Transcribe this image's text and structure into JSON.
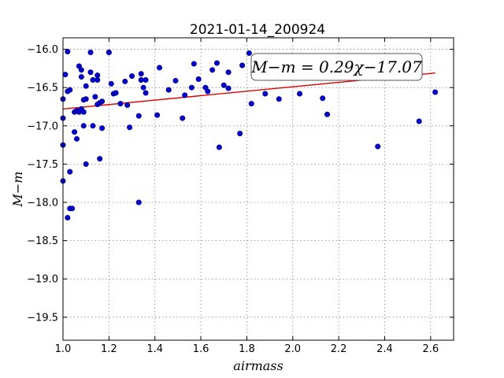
{
  "chart_data": {
    "type": "scatter",
    "title": "2021-01-14_200924",
    "xlabel": "airmass",
    "ylabel": "M−m",
    "xlim": [
      1.0,
      2.7
    ],
    "ylim": [
      -19.8,
      -15.85
    ],
    "y_inverted": true,
    "xticks": [
      "1.0",
      "1.2",
      "1.4",
      "1.6",
      "1.8",
      "2.0",
      "2.2",
      "2.4",
      "2.6"
    ],
    "yticks": [
      "−16.0",
      "−16.5",
      "−17.0",
      "−17.5",
      "−18.0",
      "−18.5",
      "−19.0",
      "−19.5"
    ],
    "grid": true,
    "annotation": "M−m = 0.29χ−17.07",
    "fit": {
      "slope": 0.29,
      "intercept": -17.07
    },
    "colors": {
      "points": "#0000cc",
      "fit_line": "#dd0000"
    },
    "points": [
      [
        1.0,
        -16.65
      ],
      [
        1.0,
        -16.9
      ],
      [
        1.0,
        -17.25
      ],
      [
        1.0,
        -17.72
      ],
      [
        1.01,
        -16.33
      ],
      [
        1.02,
        -16.03
      ],
      [
        1.02,
        -16.55
      ],
      [
        1.03,
        -16.53
      ],
      [
        1.02,
        -18.2
      ],
      [
        1.03,
        -17.6
      ],
      [
        1.03,
        -18.08
      ],
      [
        1.04,
        -18.08
      ],
      [
        1.05,
        -16.82
      ],
      [
        1.05,
        -17.08
      ],
      [
        1.06,
        -17.17
      ],
      [
        1.06,
        -16.8
      ],
      [
        1.07,
        -16.22
      ],
      [
        1.07,
        -16.82
      ],
      [
        1.08,
        -16.27
      ],
      [
        1.08,
        -16.36
      ],
      [
        1.08,
        -16.78
      ],
      [
        1.09,
        -16.66
      ],
      [
        1.09,
        -16.82
      ],
      [
        1.09,
        -17.0
      ],
      [
        1.1,
        -16.65
      ],
      [
        1.1,
        -17.5
      ],
      [
        1.1,
        -16.48
      ],
      [
        1.12,
        -16.04
      ],
      [
        1.12,
        -16.3
      ],
      [
        1.13,
        -17.0
      ],
      [
        1.13,
        -16.4
      ],
      [
        1.14,
        -16.62
      ],
      [
        1.15,
        -16.34
      ],
      [
        1.15,
        -16.72
      ],
      [
        1.15,
        -16.4
      ],
      [
        1.16,
        -16.7
      ],
      [
        1.16,
        -17.43
      ],
      [
        1.17,
        -17.03
      ],
      [
        1.17,
        -16.68
      ],
      [
        1.2,
        -16.04
      ],
      [
        1.2,
        -16.04
      ],
      [
        1.21,
        -16.45
      ],
      [
        1.22,
        -16.58
      ],
      [
        1.23,
        -16.57
      ],
      [
        1.25,
        -16.71
      ],
      [
        1.27,
        -16.42
      ],
      [
        1.28,
        -16.73
      ],
      [
        1.29,
        -17.02
      ],
      [
        1.3,
        -16.35
      ],
      [
        1.33,
        -18.0
      ],
      [
        1.33,
        -16.87
      ],
      [
        1.34,
        -16.32
      ],
      [
        1.34,
        -16.4
      ],
      [
        1.35,
        -16.5
      ],
      [
        1.36,
        -16.57
      ],
      [
        1.36,
        -16.4
      ],
      [
        1.41,
        -16.86
      ],
      [
        1.42,
        -16.24
      ],
      [
        1.46,
        -16.53
      ],
      [
        1.49,
        -16.41
      ],
      [
        1.52,
        -16.9
      ],
      [
        1.53,
        -16.6
      ],
      [
        1.56,
        -16.5
      ],
      [
        1.57,
        -16.19
      ],
      [
        1.59,
        -16.39
      ],
      [
        1.62,
        -16.5
      ],
      [
        1.63,
        -16.55
      ],
      [
        1.65,
        -16.27
      ],
      [
        1.67,
        -16.18
      ],
      [
        1.68,
        -17.28
      ],
      [
        1.7,
        -16.47
      ],
      [
        1.72,
        -16.3
      ],
      [
        1.72,
        -16.51
      ],
      [
        1.77,
        -17.1
      ],
      [
        1.78,
        -16.21
      ],
      [
        1.81,
        -16.05
      ],
      [
        1.82,
        -16.71
      ],
      [
        1.88,
        -16.58
      ],
      [
        1.94,
        -16.65
      ],
      [
        2.03,
        -16.58
      ],
      [
        2.13,
        -16.64
      ],
      [
        2.15,
        -16.85
      ],
      [
        2.37,
        -17.27
      ],
      [
        2.55,
        -16.94
      ],
      [
        2.62,
        -16.56
      ]
    ]
  }
}
